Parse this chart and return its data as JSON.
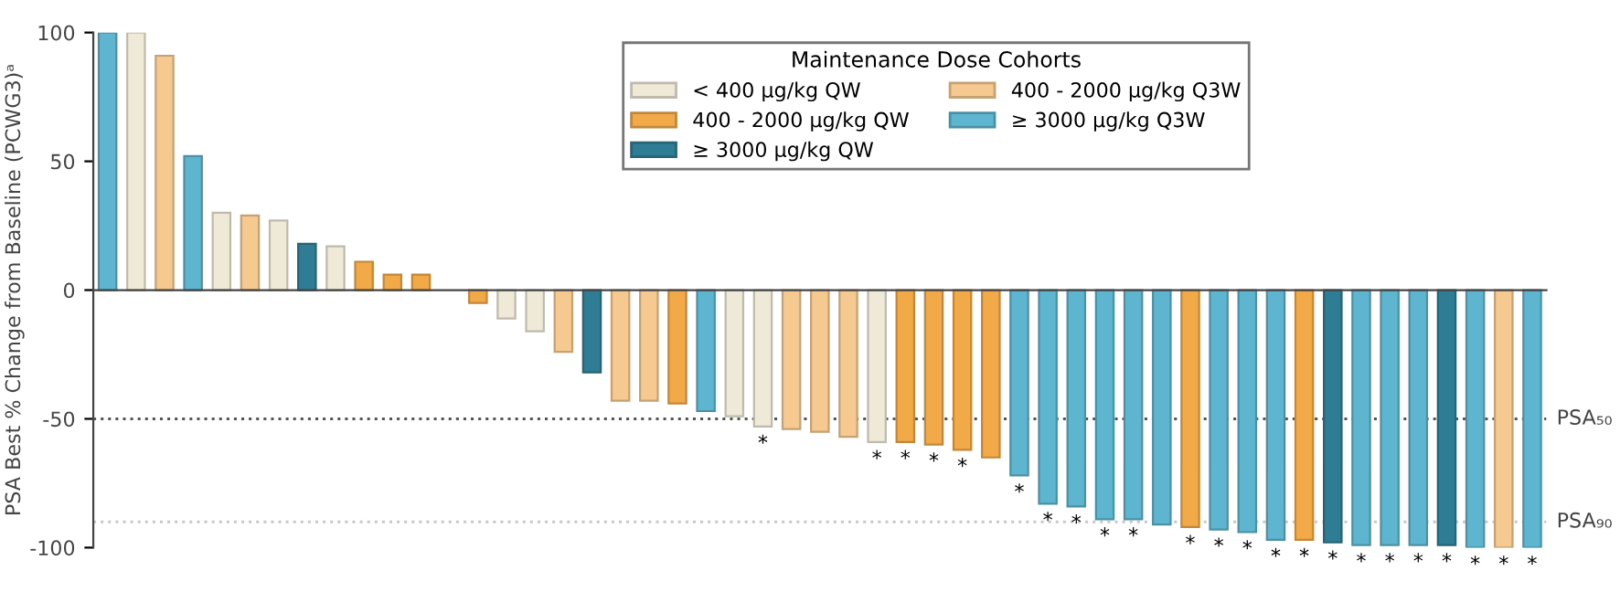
{
  "chart_data": {
    "type": "bar",
    "ylabel": "PSA Best % Change from Baseline (PCWG3)ᵃ",
    "legend_title": "Maintenance Dose Cohorts",
    "legend": "top",
    "categories": [
      null,
      null,
      null,
      null,
      null,
      null,
      null,
      null,
      null,
      null,
      null,
      null,
      null,
      null,
      null,
      null,
      null,
      null,
      null,
      null,
      null,
      null,
      null,
      null,
      null,
      null,
      null,
      null,
      null,
      null,
      null,
      null,
      null,
      null,
      null,
      null,
      null,
      null,
      null,
      null,
      null,
      null,
      null,
      null,
      null,
      null,
      null,
      null,
      null,
      null,
      null
    ],
    "ylim": [
      -100,
      100
    ],
    "yticks": [
      -100,
      -50,
      0,
      50,
      100
    ],
    "ref_lines": [
      {
        "axis": "y",
        "value": -50,
        "label": "PSA₅₀",
        "color": "#555555",
        "line_style": "dotted"
      },
      {
        "axis": "y",
        "value": -90,
        "label": "PSA₉₀",
        "color": "#c8c8c8",
        "line_style": "dotted"
      }
    ],
    "series": [
      {
        "name": "< 400 µg/kg QW",
        "color": "#efe9d8",
        "values": [
          null,
          100,
          null,
          null,
          30,
          null,
          27,
          null,
          17,
          null,
          null,
          null,
          null,
          null,
          -11,
          -16,
          null,
          null,
          null,
          null,
          null,
          null,
          -49,
          -53,
          null,
          null,
          null,
          -59,
          null,
          null,
          null,
          null,
          null,
          null,
          null,
          null,
          null,
          null,
          null,
          null,
          null,
          null,
          null,
          null,
          null,
          null,
          null,
          null,
          null,
          null,
          null
        ],
        "value_labels": [
          null,
          null,
          null,
          null,
          null,
          null,
          null,
          null,
          null,
          null,
          null,
          null,
          null,
          null,
          null,
          null,
          null,
          null,
          null,
          null,
          null,
          null,
          null,
          "*",
          null,
          null,
          null,
          "*",
          null,
          null,
          null,
          null,
          null,
          null,
          null,
          null,
          null,
          null,
          null,
          null,
          null,
          null,
          null,
          null,
          null,
          null,
          null,
          null,
          null,
          null,
          null
        ]
      },
      {
        "name": "400 - 2000 µg/kg QW",
        "color": "#f2a948",
        "values": [
          null,
          null,
          null,
          null,
          null,
          null,
          null,
          null,
          null,
          11,
          6,
          6,
          null,
          -5,
          null,
          null,
          null,
          null,
          null,
          null,
          -44,
          null,
          null,
          null,
          null,
          null,
          null,
          null,
          -59,
          -60,
          -62,
          -65,
          null,
          null,
          null,
          null,
          null,
          null,
          -92,
          null,
          null,
          null,
          -97,
          null,
          null,
          null,
          null,
          null,
          null,
          null,
          null
        ],
        "value_labels": [
          null,
          null,
          null,
          null,
          null,
          null,
          null,
          null,
          null,
          null,
          null,
          null,
          null,
          null,
          null,
          null,
          null,
          null,
          null,
          null,
          null,
          null,
          null,
          null,
          null,
          null,
          null,
          null,
          "*",
          "*",
          "*",
          null,
          null,
          null,
          null,
          null,
          null,
          null,
          "*",
          null,
          null,
          null,
          "*",
          null,
          null,
          null,
          null,
          null,
          null,
          null,
          null
        ]
      },
      {
        "name": "≥ 3000 µg/kg QW",
        "color": "#2f7d94",
        "values": [
          null,
          null,
          null,
          null,
          null,
          null,
          null,
          18,
          null,
          null,
          null,
          null,
          null,
          null,
          null,
          null,
          null,
          -32,
          null,
          null,
          null,
          null,
          null,
          null,
          null,
          null,
          null,
          null,
          null,
          null,
          null,
          null,
          null,
          null,
          null,
          null,
          null,
          null,
          null,
          null,
          null,
          null,
          null,
          -98,
          null,
          null,
          null,
          -99,
          null,
          null,
          null
        ],
        "value_labels": [
          null,
          null,
          null,
          null,
          null,
          null,
          null,
          null,
          null,
          null,
          null,
          null,
          null,
          null,
          null,
          null,
          null,
          null,
          null,
          null,
          null,
          null,
          null,
          null,
          null,
          null,
          null,
          null,
          null,
          null,
          null,
          null,
          null,
          null,
          null,
          null,
          null,
          null,
          null,
          null,
          null,
          null,
          null,
          "*",
          null,
          null,
          null,
          "*",
          null,
          null,
          null
        ]
      },
      {
        "name": "400 - 2000 µg/kg Q3W",
        "color": "#f6c990",
        "values": [
          null,
          null,
          91,
          null,
          null,
          29,
          null,
          null,
          null,
          null,
          null,
          null,
          null,
          null,
          null,
          null,
          -24,
          null,
          -43,
          -43,
          null,
          null,
          null,
          null,
          -54,
          -55,
          -57,
          null,
          null,
          null,
          null,
          null,
          null,
          null,
          null,
          null,
          null,
          null,
          null,
          null,
          null,
          null,
          null,
          null,
          null,
          null,
          null,
          null,
          null,
          -100,
          null
        ],
        "value_labels": [
          null,
          null,
          null,
          null,
          null,
          null,
          null,
          null,
          null,
          null,
          null,
          null,
          null,
          null,
          null,
          null,
          null,
          null,
          null,
          null,
          null,
          null,
          null,
          null,
          null,
          null,
          null,
          null,
          null,
          null,
          null,
          null,
          null,
          null,
          null,
          null,
          null,
          null,
          null,
          null,
          null,
          null,
          null,
          null,
          null,
          null,
          null,
          null,
          null,
          "*",
          null
        ]
      },
      {
        "name": "≥ 3000 µg/kg Q3W",
        "color": "#5eb5cf",
        "values": [
          100,
          null,
          null,
          52,
          null,
          null,
          null,
          null,
          null,
          null,
          null,
          null,
          null,
          null,
          null,
          null,
          null,
          null,
          null,
          null,
          null,
          -47,
          null,
          null,
          null,
          null,
          null,
          null,
          null,
          null,
          null,
          null,
          -72,
          -83,
          -84,
          -89,
          -89,
          -91,
          null,
          -93,
          -94,
          -97,
          null,
          null,
          -99,
          -99,
          -99,
          null,
          -100,
          null,
          -100
        ],
        "value_labels": [
          null,
          null,
          null,
          null,
          null,
          null,
          null,
          null,
          null,
          null,
          null,
          null,
          null,
          null,
          null,
          null,
          null,
          null,
          null,
          null,
          null,
          null,
          null,
          null,
          null,
          null,
          null,
          null,
          null,
          null,
          null,
          null,
          "*",
          "*",
          "*",
          "*",
          "*",
          null,
          null,
          "*",
          "*",
          "*",
          null,
          null,
          "*",
          "*",
          "*",
          null,
          "*",
          null,
          "*"
        ]
      }
    ]
  }
}
